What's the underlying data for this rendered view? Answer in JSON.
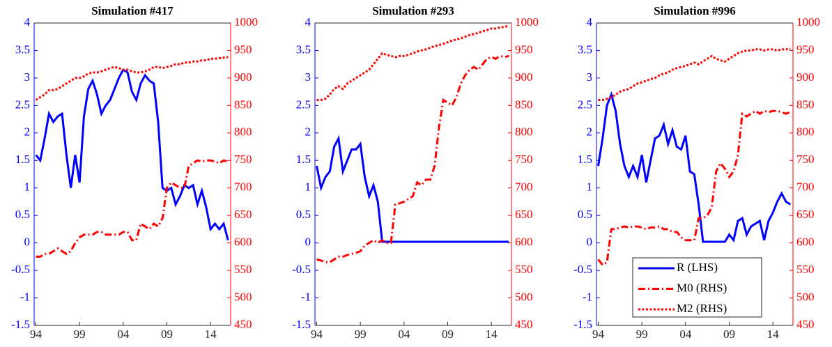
{
  "chart_data": [
    {
      "type": "line",
      "title": "Simulation #417",
      "x": [
        1994,
        1994.5,
        1995,
        1995.5,
        1996,
        1996.5,
        1997,
        1997.5,
        1998,
        1998.5,
        1999,
        1999.5,
        2000,
        2000.5,
        2001,
        2001.5,
        2002,
        2002.5,
        2003,
        2003.5,
        2004,
        2004.5,
        2005,
        2005.5,
        2006,
        2006.5,
        2007,
        2007.5,
        2008,
        2008.5,
        2009,
        2009.5,
        2010,
        2010.5,
        2011,
        2011.5,
        2012,
        2012.5,
        2013,
        2013.5,
        2014,
        2014.5,
        2015,
        2015.5,
        2016
      ],
      "xlim": [
        1993.8,
        2016.3
      ],
      "xticks": [
        {
          "value": 1994,
          "label": "94"
        },
        {
          "value": 1999,
          "label": "99"
        },
        {
          "value": 2004,
          "label": "04"
        },
        {
          "value": 2009,
          "label": "09"
        },
        {
          "value": 2014,
          "label": "14"
        }
      ],
      "ylim": [
        -1.5,
        4
      ],
      "yticks": [
        -1.5,
        -1,
        -0.5,
        0,
        0.5,
        1,
        1.5,
        2,
        2.5,
        3,
        3.5,
        4
      ],
      "ycolor": "#0000ff",
      "y2lim": [
        450,
        1000
      ],
      "y2ticks": [
        450,
        500,
        550,
        600,
        650,
        700,
        750,
        800,
        850,
        900,
        950,
        1000
      ],
      "y2color": "#ff0000",
      "series": [
        {
          "color": "#0000ff",
          "linestyle": "solid",
          "values": [
            1.6,
            1.5,
            1.9,
            2.35,
            2.2,
            2.3,
            2.35,
            1.6,
            1.0,
            1.6,
            1.1,
            2.3,
            2.8,
            2.95,
            2.7,
            2.35,
            2.5,
            2.6,
            2.8,
            3.0,
            3.15,
            3.1,
            2.75,
            2.6,
            2.9,
            3.05,
            2.95,
            2.9,
            2.2,
            1.0,
            0.95,
            1.0,
            0.7,
            0.85,
            1.05,
            1.0,
            1.05,
            0.7,
            0.95,
            0.65,
            0.25,
            0.35,
            0.25,
            0.35,
            0.05
          ]
        },
        {
          "color": "#ff0000",
          "linestyle": "dashdot",
          "axis": "y2",
          "values": [
            575,
            575,
            580,
            580,
            585,
            590,
            585,
            580,
            585,
            600,
            610,
            615,
            615,
            615,
            620,
            620,
            615,
            615,
            615,
            615,
            620,
            620,
            605,
            605,
            635,
            630,
            625,
            635,
            630,
            645,
            700,
            710,
            705,
            700,
            700,
            740,
            745,
            750,
            748,
            750,
            750,
            748,
            745,
            750,
            748
          ]
        },
        {
          "color": "#ff0000",
          "linestyle": "dotted",
          "axis": "y2",
          "values": [
            860,
            865,
            870,
            878,
            878,
            880,
            885,
            890,
            895,
            900,
            900,
            903,
            908,
            910,
            910,
            912,
            915,
            918,
            920,
            918,
            915,
            915,
            912,
            910,
            910,
            912,
            915,
            920,
            920,
            918,
            920,
            922,
            925,
            925,
            928,
            928,
            930,
            930,
            932,
            932,
            935,
            935,
            936,
            937,
            938
          ]
        }
      ]
    },
    {
      "type": "line",
      "title": "Simulation #293",
      "x": [
        1994,
        1994.5,
        1995,
        1995.5,
        1996,
        1996.5,
        1997,
        1997.5,
        1998,
        1998.5,
        1999,
        1999.5,
        2000,
        2000.5,
        2001,
        2001.5,
        2002,
        2002.5,
        2003,
        2003.5,
        2004,
        2004.5,
        2005,
        2005.5,
        2006,
        2006.5,
        2007,
        2007.5,
        2008,
        2008.5,
        2009,
        2009.5,
        2010,
        2010.5,
        2011,
        2011.5,
        2012,
        2012.5,
        2013,
        2013.5,
        2014,
        2014.5,
        2015,
        2015.5,
        2016
      ],
      "xlim": [
        1993.8,
        2016.3
      ],
      "xticks": [
        {
          "value": 1994,
          "label": "94"
        },
        {
          "value": 1999,
          "label": "99"
        },
        {
          "value": 2004,
          "label": "04"
        },
        {
          "value": 2009,
          "label": "09"
        },
        {
          "value": 2014,
          "label": "14"
        }
      ],
      "ylim": [
        -1.5,
        4
      ],
      "yticks": [
        -1.5,
        -1,
        -0.5,
        0,
        0.5,
        1,
        1.5,
        2,
        2.5,
        3,
        3.5,
        4
      ],
      "ycolor": "#0000ff",
      "y2lim": [
        450,
        1000
      ],
      "y2ticks": [
        450,
        500,
        550,
        600,
        650,
        700,
        750,
        800,
        850,
        900,
        950,
        1000
      ],
      "y2color": "#ff0000",
      "series": [
        {
          "color": "#0000ff",
          "linestyle": "solid",
          "values": [
            1.4,
            1.0,
            1.2,
            1.3,
            1.75,
            1.9,
            1.3,
            1.5,
            1.7,
            1.7,
            1.8,
            1.2,
            0.85,
            1.05,
            0.75,
            0.02,
            0.02,
            0.02,
            0.02,
            0.02,
            0.02,
            0.02,
            0.02,
            0.02,
            0.02,
            0.02,
            0.02,
            0.02,
            0.02,
            0.02,
            0.02,
            0.02,
            0.02,
            0.02,
            0.02,
            0.02,
            0.02,
            0.02,
            0.02,
            0.02,
            0.02,
            0.02,
            0.02,
            0.02,
            0.02
          ]
        },
        {
          "color": "#ff0000",
          "linestyle": "dashdot",
          "axis": "y2",
          "values": [
            570,
            568,
            565,
            565,
            570,
            575,
            575,
            578,
            580,
            582,
            585,
            595,
            600,
            605,
            600,
            605,
            600,
            600,
            670,
            672,
            675,
            680,
            685,
            710,
            705,
            715,
            715,
            740,
            810,
            860,
            855,
            850,
            865,
            890,
            905,
            915,
            920,
            915,
            925,
            935,
            938,
            935,
            940,
            938,
            940
          ]
        },
        {
          "color": "#ff0000",
          "linestyle": "dotted",
          "axis": "y2",
          "values": [
            860,
            860,
            862,
            870,
            880,
            885,
            880,
            890,
            895,
            900,
            905,
            910,
            915,
            925,
            935,
            945,
            942,
            940,
            938,
            940,
            940,
            942,
            945,
            948,
            950,
            952,
            955,
            958,
            960,
            962,
            965,
            968,
            970,
            972,
            975,
            978,
            980,
            982,
            985,
            987,
            990,
            990,
            992,
            993,
            995
          ]
        }
      ]
    },
    {
      "type": "line",
      "title": "Simulation #996",
      "x": [
        1994,
        1994.5,
        1995,
        1995.5,
        1996,
        1996.5,
        1997,
        1997.5,
        1998,
        1998.5,
        1999,
        1999.5,
        2000,
        2000.5,
        2001,
        2001.5,
        2002,
        2002.5,
        2003,
        2003.5,
        2004,
        2004.5,
        2005,
        2005.5,
        2006,
        2006.5,
        2007,
        2007.5,
        2008,
        2008.5,
        2009,
        2009.5,
        2010,
        2010.5,
        2011,
        2011.5,
        2012,
        2012.5,
        2013,
        2013.5,
        2014,
        2014.5,
        2015,
        2015.5,
        2016
      ],
      "xlim": [
        1993.8,
        2016.3
      ],
      "xticks": [
        {
          "value": 1994,
          "label": "94"
        },
        {
          "value": 1999,
          "label": "99"
        },
        {
          "value": 2004,
          "label": "04"
        },
        {
          "value": 2009,
          "label": "09"
        },
        {
          "value": 2014,
          "label": "14"
        }
      ],
      "ylim": [
        -1.5,
        4
      ],
      "yticks": [
        -1.5,
        -1,
        -0.5,
        0,
        0.5,
        1,
        1.5,
        2,
        2.5,
        3,
        3.5,
        4
      ],
      "ycolor": "#0000ff",
      "y2lim": [
        450,
        1000
      ],
      "y2ticks": [
        450,
        500,
        550,
        600,
        650,
        700,
        750,
        800,
        850,
        900,
        950,
        1000
      ],
      "y2color": "#ff0000",
      "legend": "lower right",
      "series": [
        {
          "name": "R (LHS)",
          "color": "#0000ff",
          "linestyle": "solid",
          "values": [
            1.4,
            1.9,
            2.5,
            2.7,
            2.4,
            1.8,
            1.4,
            1.2,
            1.4,
            1.2,
            1.6,
            1.1,
            1.5,
            1.9,
            1.95,
            2.15,
            1.8,
            2.05,
            1.75,
            1.7,
            1.95,
            1.3,
            1.25,
            0.7,
            0.02,
            0.02,
            0.02,
            0.02,
            0.02,
            0.02,
            0.15,
            0.05,
            0.4,
            0.45,
            0.15,
            0.3,
            0.35,
            0.4,
            0.05,
            0.4,
            0.55,
            0.75,
            0.9,
            0.75,
            0.7
          ]
        },
        {
          "name": "M0 (RHS)",
          "color": "#ff0000",
          "linestyle": "dashdot",
          "axis": "y2",
          "values": [
            570,
            560,
            565,
            625,
            625,
            628,
            630,
            628,
            630,
            630,
            628,
            625,
            628,
            628,
            630,
            625,
            625,
            620,
            620,
            610,
            605,
            605,
            605,
            645,
            645,
            650,
            665,
            730,
            745,
            735,
            720,
            730,
            760,
            835,
            830,
            835,
            840,
            835,
            840,
            838,
            840,
            840,
            838,
            835,
            838
          ]
        },
        {
          "name": "M2 (RHS)",
          "color": "#ff0000",
          "linestyle": "dotted",
          "axis": "y2",
          "values": [
            860,
            860,
            862,
            865,
            870,
            875,
            878,
            880,
            885,
            890,
            892,
            895,
            898,
            900,
            905,
            908,
            910,
            915,
            918,
            920,
            922,
            925,
            928,
            925,
            930,
            935,
            940,
            935,
            932,
            930,
            935,
            940,
            945,
            948,
            950,
            950,
            952,
            952,
            950,
            952,
            952,
            950,
            952,
            952,
            953
          ]
        }
      ]
    }
  ]
}
